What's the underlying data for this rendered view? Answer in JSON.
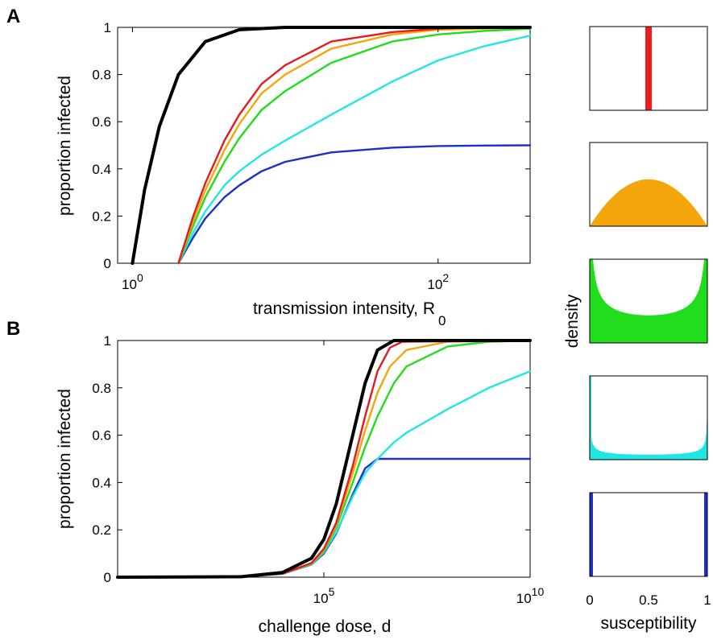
{
  "panels": {
    "a": {
      "letter": "A"
    },
    "b": {
      "letter": "B"
    }
  },
  "chart_data": [
    {
      "id": "A",
      "type": "line",
      "xlabel": "transmission intensity, R",
      "xlabel_sub": "0",
      "ylabel": "proportion infected",
      "xscale": "log",
      "xlim": [
        0.8,
        400
      ],
      "ylim": [
        0,
        1
      ],
      "x_ticks": [
        {
          "base": "10",
          "exp": "0",
          "value": 1
        },
        {
          "base": "10",
          "exp": "2",
          "value": 100
        }
      ],
      "y_ticks": [
        "0",
        "0.2",
        "0.4",
        "0.6",
        "0.8",
        "1"
      ],
      "grid": false,
      "series": [
        {
          "color": "#000000",
          "width": 4,
          "x": [
            1,
            1.2,
            1.5,
            2,
            3,
            5,
            10,
            20,
            50,
            100,
            200,
            400
          ],
          "y": [
            0,
            0.31,
            0.58,
            0.8,
            0.94,
            0.99,
            1,
            1,
            1,
            1,
            1,
            1
          ]
        },
        {
          "color": "#e41a1c",
          "width": 2.4,
          "x": [
            2,
            2.5,
            3,
            4,
            5,
            7,
            10,
            20,
            50,
            100,
            200,
            400
          ],
          "y": [
            0,
            0.2,
            0.34,
            0.52,
            0.63,
            0.76,
            0.84,
            0.94,
            0.98,
            0.995,
            1,
            1
          ]
        },
        {
          "color": "#f5a50c",
          "width": 2.4,
          "x": [
            2,
            2.5,
            3,
            4,
            5,
            7,
            10,
            20,
            50,
            100,
            200,
            400
          ],
          "y": [
            0,
            0.18,
            0.31,
            0.48,
            0.59,
            0.72,
            0.8,
            0.91,
            0.97,
            0.99,
            0.995,
            1
          ]
        },
        {
          "color": "#22dd1c",
          "width": 2.4,
          "x": [
            2,
            2.5,
            3,
            4,
            5,
            7,
            10,
            20,
            50,
            100,
            200,
            400
          ],
          "y": [
            0,
            0.16,
            0.28,
            0.43,
            0.53,
            0.65,
            0.73,
            0.85,
            0.94,
            0.97,
            0.985,
            0.995
          ]
        },
        {
          "color": "#22e5e5",
          "width": 2.4,
          "x": [
            2,
            2.5,
            3,
            4,
            5,
            7,
            10,
            20,
            50,
            100,
            200,
            400
          ],
          "y": [
            0,
            0.13,
            0.22,
            0.33,
            0.39,
            0.46,
            0.52,
            0.63,
            0.77,
            0.86,
            0.92,
            0.965
          ]
        },
        {
          "color": "#1a32c8",
          "width": 2.4,
          "x": [
            2,
            2.5,
            3,
            4,
            5,
            7,
            10,
            20,
            50,
            100,
            200,
            400
          ],
          "y": [
            0,
            0.11,
            0.19,
            0.28,
            0.33,
            0.39,
            0.43,
            0.47,
            0.49,
            0.497,
            0.499,
            0.5
          ]
        }
      ]
    },
    {
      "id": "B",
      "type": "line",
      "xlabel": "challenge dose, d",
      "ylabel": "proportion infected",
      "xscale": "log",
      "xlim": [
        1,
        10000000000
      ],
      "ylim": [
        0,
        1
      ],
      "x_ticks": [
        {
          "base": "10",
          "exp": "5",
          "value": 100000
        },
        {
          "base": "10",
          "exp": "10",
          "value": 10000000000
        }
      ],
      "y_ticks": [
        "0",
        "0.2",
        "0.4",
        "0.6",
        "0.8",
        "1"
      ],
      "grid": false,
      "series": [
        {
          "color": "#000000",
          "width": 4,
          "x": [
            1,
            1000,
            10000,
            50000,
            100000,
            200000,
            500000,
            1000000,
            2000000,
            5000000,
            10000000000
          ],
          "y": [
            0,
            0.002,
            0.02,
            0.08,
            0.16,
            0.31,
            0.6,
            0.82,
            0.96,
            1,
            1
          ]
        },
        {
          "color": "#e41a1c",
          "width": 2.4,
          "x": [
            1,
            1000,
            10000,
            50000,
            100000,
            200000,
            500000,
            1000000,
            2000000,
            4000000,
            8000000,
            10000000000
          ],
          "y": [
            0,
            0.002,
            0.015,
            0.06,
            0.12,
            0.23,
            0.47,
            0.68,
            0.87,
            0.97,
            0.995,
            1
          ]
        },
        {
          "color": "#f5a50c",
          "width": 2.4,
          "x": [
            1,
            1000,
            10000,
            50000,
            100000,
            200000,
            500000,
            1000000,
            2000000,
            4000000,
            10000000,
            100000000,
            10000000000
          ],
          "y": [
            0,
            0.002,
            0.015,
            0.058,
            0.115,
            0.22,
            0.44,
            0.62,
            0.78,
            0.89,
            0.96,
            0.995,
            1
          ]
        },
        {
          "color": "#22dd1c",
          "width": 2.4,
          "x": [
            1,
            1000,
            10000,
            50000,
            100000,
            200000,
            500000,
            1000000,
            2000000,
            5000000,
            10000000,
            100000000,
            1000000000,
            10000000000
          ],
          "y": [
            0,
            0.002,
            0.015,
            0.056,
            0.11,
            0.21,
            0.4,
            0.55,
            0.68,
            0.82,
            0.89,
            0.975,
            0.995,
            1
          ]
        },
        {
          "color": "#22e5e5",
          "width": 2.4,
          "x": [
            1,
            1000,
            10000,
            50000,
            100000,
            200000,
            500000,
            1000000,
            2000000,
            5000000,
            10000000,
            100000000,
            1000000000,
            10000000000
          ],
          "y": [
            0,
            0.002,
            0.014,
            0.054,
            0.105,
            0.19,
            0.34,
            0.44,
            0.5,
            0.57,
            0.61,
            0.71,
            0.8,
            0.87
          ]
        },
        {
          "color": "#1a32c8",
          "width": 2.4,
          "x": [
            1,
            1000,
            10000,
            50000,
            100000,
            200000,
            500000,
            1000000,
            2000000,
            5000000,
            10000000000
          ],
          "y": [
            0,
            0.002,
            0.014,
            0.053,
            0.1,
            0.185,
            0.35,
            0.46,
            0.5,
            0.5,
            0.5
          ]
        }
      ]
    },
    {
      "id": "density-panels",
      "type": "area",
      "xlabel": "susceptibility",
      "ylabel": "density",
      "xlim": [
        0,
        1
      ],
      "x_ticks": [
        "0",
        "0.5",
        "1"
      ],
      "distributions": [
        {
          "color": "#ee1c1c",
          "kind": "point",
          "at": [
            0.5
          ]
        },
        {
          "color": "#f5a50c",
          "kind": "dome",
          "peak": 0.8
        },
        {
          "color": "#22dd1c",
          "kind": "u-shape",
          "floor": 0.33
        },
        {
          "color": "#22e5e5",
          "kind": "u-shape",
          "floor": 0.06
        },
        {
          "color": "#1a32c8",
          "kind": "point",
          "at": [
            0,
            1
          ]
        }
      ]
    }
  ]
}
